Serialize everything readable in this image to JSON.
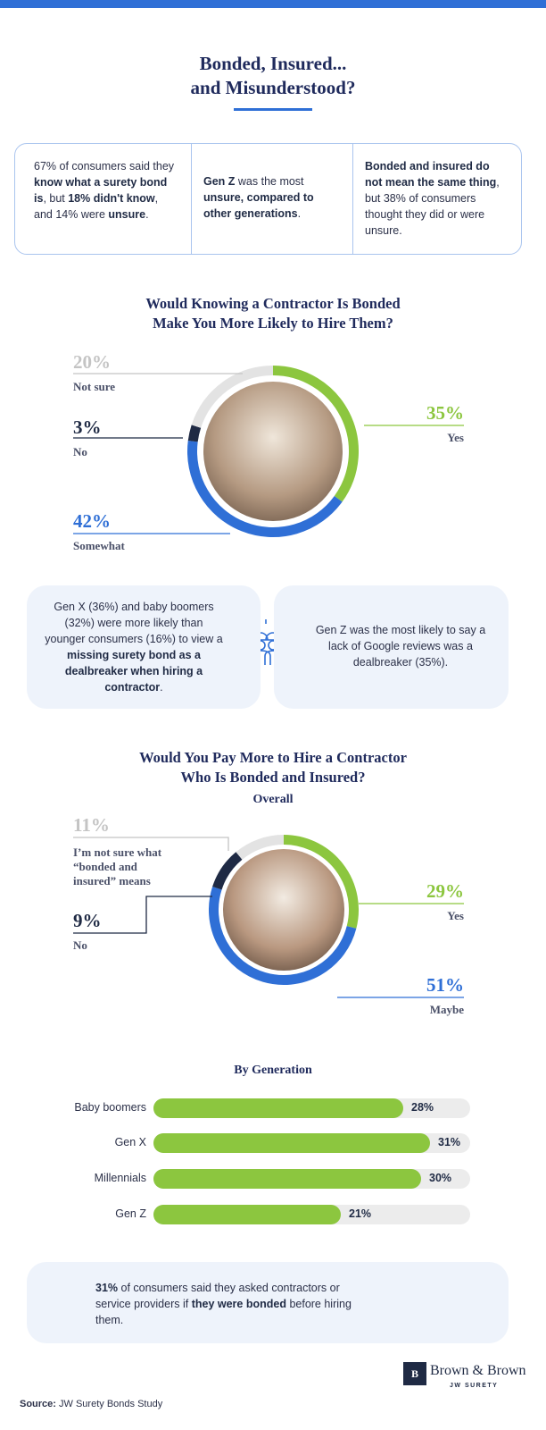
{
  "header": {
    "title": [
      "Bonded, Insured...",
      "and Misunderstood?"
    ]
  },
  "stats": [
    [
      "67% of consumers said they ",
      {
        "text": "know what a surety bond is",
        "bold": true
      },
      ", but ",
      {
        "text": "18% didn't know",
        "bold": true
      },
      ", and 14% were ",
      {
        "text": "unsure",
        "bold": true
      },
      "."
    ],
    [
      {
        "text": "Gen Z",
        "bold": true
      },
      " was the most ",
      {
        "text": "unsure, compared to other generations",
        "bold": true
      },
      "."
    ],
    [
      {
        "text": "Bonded and insured do not mean the same thing",
        "bold": true
      },
      ", but 38% of consumers thought they did or were unsure."
    ]
  ],
  "chart_data": [
    {
      "type": "donut",
      "title": [
        "Would Knowing a Contractor Is Bonded",
        "Make You More Likely to Hire Them?"
      ],
      "categories": [
        "Yes",
        "Somewhat",
        "No",
        "Not sure"
      ],
      "values": [
        35,
        42,
        3,
        20
      ],
      "value_labels": [
        "35%",
        "42%",
        "3%",
        "20%"
      ],
      "colors": [
        "#8cc63f",
        "#2f6fd6",
        "#1f2a44",
        "#e3e3e3"
      ],
      "label_colors": [
        "#8cc63f",
        "#2f6fd6",
        "#1f2a44",
        "#c4c4c4"
      ]
    },
    {
      "type": "donut",
      "title": [
        "Would You Pay More to Hire a Contractor",
        "Who Is Bonded and Insured?"
      ],
      "subtitle": "Overall",
      "categories": [
        "Yes",
        "Maybe",
        "No",
        "I’m not sure what “bonded and insured” means"
      ],
      "values": [
        29,
        51,
        9,
        11
      ],
      "value_labels": [
        "29%",
        "51%",
        "9%",
        "11%"
      ],
      "colors": [
        "#8cc63f",
        "#2f6fd6",
        "#1f2a44",
        "#e3e3e3"
      ],
      "label_colors": [
        "#8cc63f",
        "#2f6fd6",
        "#1f2a44",
        "#c4c4c4"
      ]
    },
    {
      "type": "hbar",
      "title": "By Generation",
      "categories": [
        "Baby boomers",
        "Gen X",
        "Millennials",
        "Gen Z"
      ],
      "values": [
        28,
        31,
        30,
        21
      ],
      "value_labels": [
        "28%",
        "31%",
        "30%",
        "21%"
      ],
      "color": "#8cc63f",
      "xlim": [
        0,
        35.5
      ]
    }
  ],
  "callouts": [
    [
      "Gen X (36%) and baby boomers (32%) were more likely than younger consumers (16%) to view a ",
      {
        "text": "missing surety bond as a dealbreaker when hiring a contractor",
        "bold": true
      },
      "."
    ],
    [
      "Gen Z was the most likely to say a lack of Google reviews was a dealbreaker (35%)."
    ]
  ],
  "note": [
    {
      "text": "31%",
      "bold": true
    },
    " of consumers said they asked contractors or service providers if ",
    {
      "text": "they were bonded",
      "bold": true
    },
    " before hiring them."
  ],
  "source": {
    "label": "Source:",
    "text": "JW Surety Bonds Study"
  },
  "logo": {
    "name": "Brown & Brown",
    "sub": "JW SURETY"
  }
}
